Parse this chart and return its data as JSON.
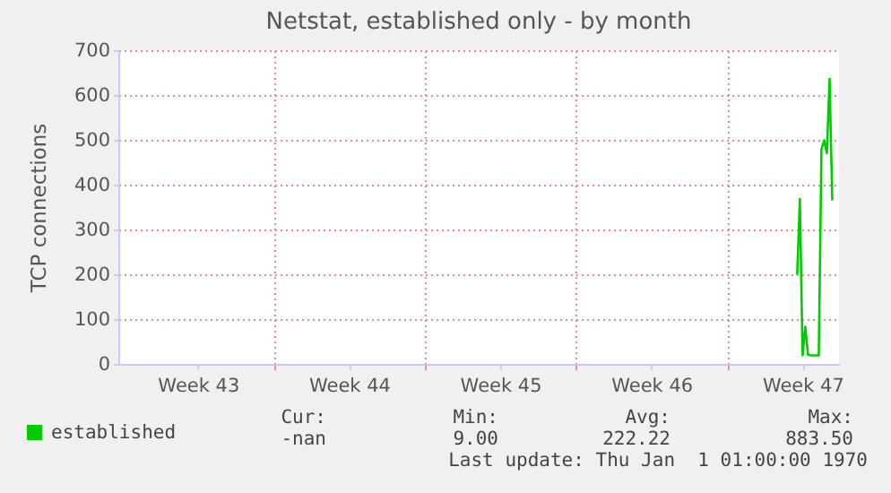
{
  "chart_data": {
    "type": "line",
    "title": "Netstat, established only - by month",
    "ylabel": "TCP connections",
    "categories": [
      null,
      null,
      null,
      null,
      null,
      null,
      null,
      null,
      null,
      null,
      null,
      null,
      null,
      null,
      null,
      null,
      null,
      null,
      null,
      null,
      null,
      null,
      null,
      null,
      null,
      null,
      null,
      null,
      null,
      "Week 43",
      null,
      null,
      null,
      null,
      null,
      null,
      null,
      null,
      null,
      null,
      null,
      null,
      null,
      null,
      null,
      null,
      null,
      null,
      null,
      null,
      null,
      null,
      null,
      null,
      null,
      null,
      null,
      null,
      null,
      null,
      null,
      null,
      null,
      null,
      null,
      null,
      null,
      null,
      null,
      null,
      null,
      null,
      null,
      null,
      null,
      null,
      null,
      null,
      null,
      null,
      null,
      null,
      null,
      null,
      null,
      "Week 44",
      null,
      null,
      null,
      null,
      null,
      null,
      null,
      null,
      null,
      null,
      null,
      null,
      null,
      null,
      null,
      null,
      null,
      null,
      null,
      null,
      null,
      null,
      null,
      null,
      null,
      null,
      null,
      null,
      null,
      null,
      null,
      null,
      null,
      null,
      null,
      null,
      null,
      null,
      null,
      null,
      null,
      null,
      null,
      null,
      null,
      null,
      null,
      null,
      null,
      null,
      null,
      null,
      null,
      null,
      null,
      "Week 45",
      null,
      null,
      null,
      null,
      null,
      null,
      null,
      null,
      null,
      null,
      null,
      null,
      null,
      null,
      null,
      null,
      null,
      null,
      null,
      null,
      null,
      null,
      null,
      null,
      null,
      null,
      null,
      null,
      null,
      null,
      null,
      null,
      null,
      null,
      null,
      null,
      null,
      null,
      null,
      null,
      null,
      null,
      null,
      null,
      null,
      null,
      null,
      null,
      null,
      null,
      null,
      null,
      null,
      null,
      null,
      "Week 46",
      null,
      null,
      null,
      null,
      null,
      null,
      null,
      null,
      null,
      null,
      null,
      null,
      null,
      null,
      null,
      null,
      null,
      null,
      null,
      null,
      null,
      null,
      null,
      null,
      null,
      null,
      null,
      null,
      null,
      null,
      null,
      null,
      null,
      null,
      null,
      null,
      null,
      null,
      null,
      null,
      null,
      null,
      null,
      null,
      null,
      null,
      null,
      null,
      null,
      null,
      null,
      null,
      null,
      null,
      null,
      "Week 47",
      null,
      null,
      null,
      null,
      null,
      null,
      null,
      null,
      null,
      null,
      null,
      null,
      null
    ],
    "series": [
      {
        "name": "established",
        "color": "#00cc00",
        "values": [
          null,
          null,
          null,
          null,
          null,
          null,
          null,
          null,
          null,
          null,
          null,
          null,
          null,
          null,
          null,
          null,
          null,
          null,
          null,
          null,
          null,
          null,
          null,
          null,
          null,
          null,
          null,
          null,
          null,
          null,
          null,
          null,
          null,
          null,
          null,
          null,
          null,
          null,
          null,
          null,
          null,
          null,
          null,
          null,
          null,
          null,
          null,
          null,
          null,
          null,
          null,
          null,
          null,
          null,
          null,
          null,
          null,
          null,
          null,
          null,
          null,
          null,
          null,
          null,
          null,
          null,
          null,
          null,
          null,
          null,
          null,
          null,
          null,
          null,
          null,
          null,
          null,
          null,
          null,
          null,
          null,
          null,
          null,
          null,
          null,
          null,
          null,
          null,
          null,
          null,
          null,
          null,
          null,
          null,
          null,
          null,
          null,
          null,
          null,
          null,
          null,
          null,
          null,
          null,
          null,
          null,
          null,
          null,
          null,
          null,
          null,
          null,
          null,
          null,
          null,
          null,
          null,
          null,
          null,
          null,
          null,
          null,
          null,
          null,
          null,
          null,
          null,
          null,
          null,
          null,
          null,
          null,
          null,
          null,
          null,
          null,
          null,
          null,
          null,
          null,
          null,
          null,
          null,
          null,
          null,
          null,
          null,
          null,
          null,
          null,
          null,
          null,
          null,
          null,
          null,
          null,
          null,
          null,
          null,
          null,
          null,
          null,
          null,
          null,
          null,
          null,
          null,
          null,
          null,
          null,
          null,
          null,
          null,
          null,
          null,
          null,
          null,
          null,
          null,
          null,
          null,
          null,
          null,
          null,
          null,
          null,
          null,
          null,
          null,
          null,
          null,
          null,
          null,
          null,
          null,
          null,
          null,
          null,
          null,
          null,
          null,
          null,
          null,
          null,
          null,
          null,
          null,
          null,
          null,
          null,
          null,
          null,
          null,
          null,
          null,
          null,
          null,
          null,
          null,
          null,
          null,
          null,
          null,
          null,
          null,
          null,
          null,
          null,
          null,
          null,
          null,
          null,
          null,
          null,
          null,
          null,
          null,
          null,
          null,
          null,
          null,
          null,
          null,
          null,
          null,
          null,
          null,
          null,
          null,
          null,
          null,
          199,
          368,
          19,
          83,
          21,
          19,
          19,
          19,
          19,
          479,
          499,
          470,
          636,
          365,
          null,
          null
        ]
      }
    ],
    "ylim": [
      0,
      700
    ],
    "yticks": [
      0,
      100,
      200,
      300,
      400,
      500,
      600,
      700
    ],
    "grid": true,
    "legend": "bottom",
    "annotations": [
      "Cur:",
      "Min:",
      "Avg:",
      "Max:",
      "-nan",
      "9.00",
      "222.22",
      "883.50",
      "Last update: Thu Jan  1 01:00:00 1970"
    ]
  }
}
